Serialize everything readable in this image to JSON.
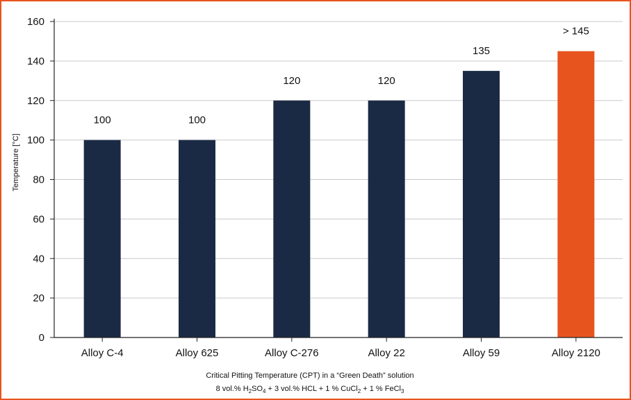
{
  "chart_data": {
    "type": "bar",
    "categories": [
      "Alloy C-4",
      "Alloy 625",
      "Alloy C-276",
      "Alloy 22",
      "Alloy 59",
      "Alloy 2120"
    ],
    "values": [
      100,
      100,
      120,
      120,
      135,
      145
    ],
    "data_labels": [
      "100",
      "100",
      "120",
      "120",
      "135",
      "> 145"
    ],
    "bar_colors": [
      "#1b2a44",
      "#1b2a44",
      "#1b2a44",
      "#1b2a44",
      "#1b2a44",
      "#e8541e"
    ],
    "ylabel": "Temperature [°C]",
    "ylim": [
      0,
      160
    ],
    "yticks": [
      0,
      20,
      40,
      60,
      80,
      100,
      120,
      140,
      160
    ],
    "grid": true,
    "caption_line1": "Critical Pitting Temperature (CPT) in a “Green Death” solution",
    "caption_line2": [
      {
        "t": "8 vol.% H"
      },
      {
        "t": "2",
        "sub": true
      },
      {
        "t": "SO"
      },
      {
        "t": "4",
        "sub": true
      },
      {
        "t": " + 3 vol.% HCL + 1 % CuCl"
      },
      {
        "t": "2",
        "sub": true
      },
      {
        "t": " + 1 % FeCl"
      },
      {
        "t": "3",
        "sub": true
      }
    ]
  },
  "colors": {
    "accent": "#e8541e",
    "bar": "#1b2a44",
    "grid": "#c9c9c9",
    "axis": "#222222"
  }
}
